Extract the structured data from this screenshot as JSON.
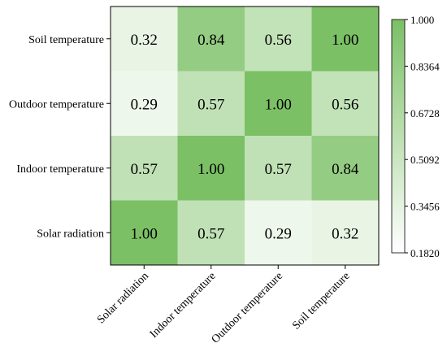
{
  "chart_data": {
    "type": "heatmap",
    "title": "",
    "xlabel": "",
    "ylabel": "",
    "x_categories": [
      "Solar radiation",
      "Indoor temperature",
      "Outdoor temperature",
      "Soil temperature"
    ],
    "y_categories_top_to_bottom": [
      "Soil temperature",
      "Outdoor temperature",
      "Indoor temperature",
      "Solar radiation"
    ],
    "values": [
      [
        0.32,
        0.84,
        0.56,
        1.0
      ],
      [
        0.29,
        0.57,
        1.0,
        0.56
      ],
      [
        0.57,
        1.0,
        0.57,
        0.84
      ],
      [
        1.0,
        0.57,
        0.29,
        0.32
      ]
    ],
    "value_labels": [
      [
        "0.32",
        "0.84",
        "0.56",
        "1.00"
      ],
      [
        "0.29",
        "0.57",
        "1.00",
        "0.56"
      ],
      [
        "0.57",
        "1.00",
        "0.57",
        "0.84"
      ],
      [
        "1.00",
        "0.57",
        "0.29",
        "0.32"
      ]
    ],
    "colorbar": {
      "min": 0.182,
      "max": 1.0,
      "tick_labels_top_to_bottom": [
        "1.000",
        "0.8364",
        "0.6728",
        "0.5092",
        "0.3456",
        "0.1820"
      ],
      "color_low": "#ffffff",
      "color_high": "#7bc065"
    },
    "grid": false
  }
}
